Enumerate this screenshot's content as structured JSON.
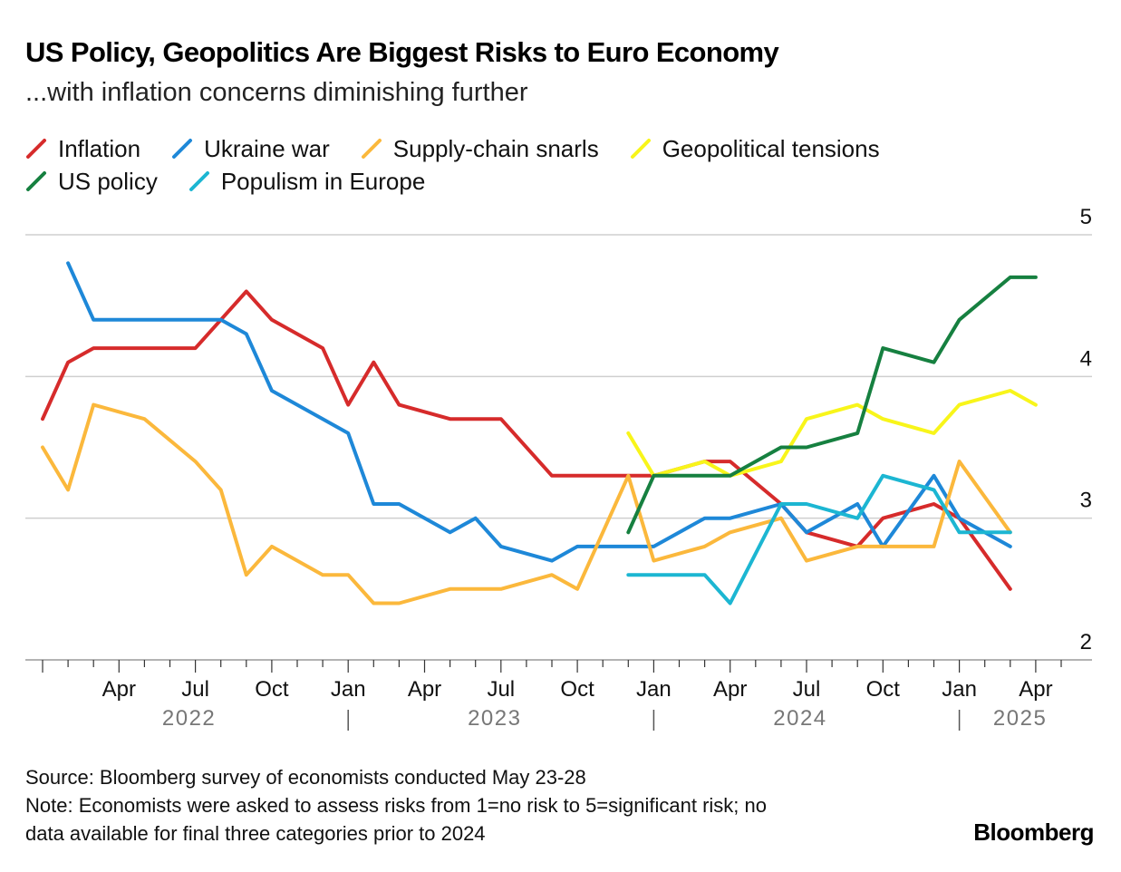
{
  "header": {
    "title": "US Policy, Geopolitics Are Biggest Risks to Euro Economy",
    "subtitle": "...with inflation concerns diminishing further"
  },
  "legend": [
    {
      "label": "Inflation",
      "color": "#d62b2b"
    },
    {
      "label": "Ukraine war",
      "color": "#1e88d8"
    },
    {
      "label": "Supply-chain snarls",
      "color": "#fbb83c"
    },
    {
      "label": "Geopolitical tensions",
      "color": "#f8f51a"
    },
    {
      "label": "US policy",
      "color": "#168040"
    },
    {
      "label": "Populism in Europe",
      "color": "#1cb6d2"
    }
  ],
  "footer": {
    "source": "Source: Bloomberg survey of economists conducted May 23-28",
    "note_line1": "Note: Economists were asked to assess risks from 1=no risk to 5=significant risk; no",
    "note_line2": "data available for final three categories prior to 2024",
    "brand": "Bloomberg"
  },
  "chart_data": {
    "type": "line",
    "x": [
      "2022-01",
      "2022-02",
      "2022-03",
      "2022-05",
      "2022-07",
      "2022-08",
      "2022-09",
      "2022-10",
      "2022-12",
      "2023-01",
      "2023-02",
      "2023-03",
      "2023-05",
      "2023-06",
      "2023-07",
      "2023-09",
      "2023-10",
      "2023-12",
      "2024-01",
      "2024-03",
      "2024-04",
      "2024-06",
      "2024-07",
      "2024-09",
      "2024-10",
      "2024-12",
      "2025-01",
      "2025-03",
      "2025-04",
      "2025-05"
    ],
    "series": [
      {
        "name": "Inflation",
        "color": "#d62b2b",
        "values": [
          3.7,
          4.1,
          4.2,
          4.2,
          4.2,
          4.4,
          4.6,
          4.4,
          4.2,
          3.8,
          4.1,
          3.8,
          3.7,
          3.7,
          3.7,
          3.3,
          3.3,
          3.3,
          3.3,
          3.4,
          3.4,
          3.1,
          2.9,
          2.8,
          3.0,
          3.1,
          3.0,
          2.5,
          null,
          null
        ]
      },
      {
        "name": "Ukraine war",
        "color": "#1e88d8",
        "values": [
          null,
          4.8,
          4.4,
          4.4,
          4.4,
          4.4,
          4.3,
          3.9,
          3.7,
          3.6,
          3.1,
          3.1,
          2.9,
          3.0,
          2.8,
          2.7,
          2.8,
          2.8,
          2.8,
          3.0,
          3.0,
          3.1,
          2.9,
          3.1,
          2.8,
          3.3,
          3.0,
          2.8,
          null,
          null
        ]
      },
      {
        "name": "Supply-chain snarls",
        "color": "#fbb83c",
        "values": [
          3.5,
          3.2,
          3.8,
          3.7,
          3.4,
          3.2,
          2.6,
          2.8,
          2.6,
          2.6,
          2.4,
          2.4,
          2.5,
          2.5,
          2.5,
          2.6,
          2.5,
          3.3,
          2.7,
          2.8,
          2.9,
          3.0,
          2.7,
          2.8,
          2.8,
          2.8,
          3.4,
          2.9,
          null,
          null
        ]
      },
      {
        "name": "Geopolitical tensions",
        "color": "#f8f51a",
        "values": [
          null,
          null,
          null,
          null,
          null,
          null,
          null,
          null,
          null,
          null,
          null,
          null,
          null,
          null,
          null,
          null,
          null,
          3.6,
          3.3,
          3.4,
          3.3,
          3.4,
          3.7,
          3.8,
          3.7,
          3.6,
          3.8,
          3.9,
          3.8,
          null
        ]
      },
      {
        "name": "US policy",
        "color": "#168040",
        "values": [
          null,
          null,
          null,
          null,
          null,
          null,
          null,
          null,
          null,
          null,
          null,
          null,
          null,
          null,
          null,
          null,
          null,
          2.9,
          3.3,
          3.3,
          3.3,
          3.5,
          3.5,
          3.6,
          4.2,
          4.1,
          4.4,
          4.7,
          4.7,
          null
        ]
      },
      {
        "name": "Populism in Europe",
        "color": "#1cb6d2",
        "values": [
          null,
          null,
          null,
          null,
          null,
          null,
          null,
          null,
          null,
          null,
          null,
          null,
          null,
          null,
          null,
          null,
          null,
          2.6,
          2.6,
          2.6,
          2.4,
          3.1,
          3.1,
          3.0,
          3.3,
          3.2,
          2.9,
          2.9,
          null,
          null
        ]
      }
    ],
    "y_ticks": [
      "2",
      "3",
      "4",
      "5"
    ],
    "ylim": [
      2,
      5
    ],
    "x_tick_labels": [
      "Apr",
      "Jul",
      "Oct",
      "Jan",
      "Apr",
      "Jul",
      "Oct",
      "Jan",
      "Apr",
      "Jul",
      "Oct",
      "Jan",
      "Apr"
    ],
    "year_labels": [
      "2022",
      "2023",
      "2024",
      "2025"
    ],
    "grid": true,
    "y_axis_position": "right",
    "legend_position": "top-left"
  }
}
